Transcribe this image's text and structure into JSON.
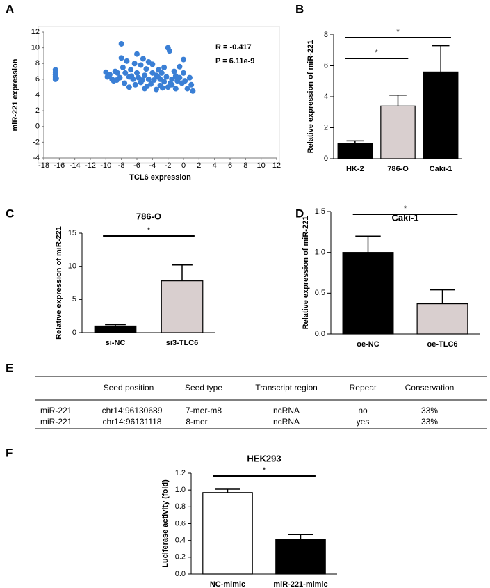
{
  "chart_data": [
    {
      "type": "scatter",
      "label": "A",
      "xlabel": "TCL6 expression",
      "ylabel": "miR-221 expression",
      "annotations": [
        "R = -0.417",
        "P = 6.11e-9"
      ],
      "color": "#3a7fd5",
      "xlim": [
        -18,
        12
      ],
      "xticks": [
        -18,
        -16,
        -14,
        -12,
        -10,
        -8,
        -6,
        -4,
        -2,
        0,
        2,
        4,
        6,
        8,
        10,
        12
      ],
      "ylim": [
        -4,
        12
      ],
      "yticks": [
        -4,
        -2,
        0,
        2,
        4,
        6,
        8,
        10,
        12
      ],
      "x": [
        -16.5,
        -16.5,
        -16.5,
        -16.5,
        -16.5,
        -16.4,
        -10,
        -9.5,
        -9.2,
        -9,
        -8.8,
        -8.5,
        -8.2,
        -8,
        -8,
        -7.8,
        -7.6,
        -7.5,
        -7.3,
        -7,
        -7,
        -6.8,
        -6.5,
        -6.3,
        -6.2,
        -6,
        -6,
        -5.8,
        -5.5,
        -5.5,
        -5.2,
        -5,
        -5,
        -4.8,
        -4.5,
        -4.5,
        -4.2,
        -4,
        -4,
        -3.8,
        -3.5,
        -3.5,
        -3.2,
        -3,
        -3,
        -2.8,
        -2.5,
        -2.5,
        -2.2,
        -2,
        -2,
        -1.8,
        -1.5,
        -1.5,
        -1.2,
        -1,
        -1,
        -0.8,
        -0.5,
        -0.5,
        -0.2,
        0,
        0,
        0.2,
        0.5,
        0.8,
        1,
        1.2,
        -9.8,
        -8.6,
        -6.7,
        -5.3,
        -4.7,
        -3.3,
        -2.7,
        -1.7
      ],
      "y": [
        6,
        6.3,
        6.6,
        6.9,
        7.2,
        6.1,
        6.9,
        6.6,
        6,
        5.8,
        7,
        6.8,
        6.2,
        10.5,
        8.7,
        7.5,
        5.5,
        6.8,
        8.3,
        6.3,
        5,
        7.2,
        6,
        8,
        5.3,
        9.2,
        6.8,
        6.2,
        7.8,
        5.6,
        8.6,
        6.5,
        4.8,
        7.3,
        6,
        8.2,
        5.4,
        6.8,
        7.9,
        5.9,
        6.5,
        4.7,
        7.2,
        6,
        5.2,
        6.8,
        5.7,
        7.5,
        6.3,
        5,
        10,
        9.6,
        6,
        5.3,
        7,
        6.4,
        4.8,
        5.8,
        7.6,
        6.2,
        5.5,
        8.5,
        6.8,
        5.8,
        4.8,
        6.2,
        5.3,
        4.5,
        6.3,
        5.9,
        6.4,
        5.9,
        5.1,
        6.3,
        4.9,
        5.5
      ]
    },
    {
      "type": "bar",
      "label": "B",
      "ylabel": "Relative expression of miR-221",
      "categories": [
        "HK-2",
        "786-O",
        "Caki-1"
      ],
      "values": [
        1.0,
        3.4,
        5.6
      ],
      "errors": [
        0.15,
        0.7,
        1.7
      ],
      "colors": [
        "#000000",
        "#d9cfcf",
        "#000000"
      ],
      "ylim": [
        0,
        8
      ],
      "yticks": [
        0,
        2,
        4,
        6,
        8
      ],
      "significance": [
        {
          "between": [
            0,
            1
          ],
          "label": "*"
        },
        {
          "between": [
            0,
            2
          ],
          "label": "*"
        }
      ]
    },
    {
      "type": "bar",
      "label": "C",
      "title": "786-O",
      "ylabel": "Relative expression of miR-221",
      "categories": [
        "si-NC",
        "si3-TLC6"
      ],
      "values": [
        1.0,
        7.8
      ],
      "errors": [
        0.2,
        2.4
      ],
      "colors": [
        "#000000",
        "#d9cfcf"
      ],
      "ylim": [
        0,
        15
      ],
      "yticks": [
        0,
        5,
        10,
        15
      ],
      "significance": [
        {
          "between": [
            0,
            1
          ],
          "label": "*"
        }
      ]
    },
    {
      "type": "bar",
      "label": "D",
      "title": "Caki-1",
      "ylabel": "Relative expression of miR-221",
      "categories": [
        "oe-NC",
        "oe-TLC6"
      ],
      "values": [
        1.0,
        0.37
      ],
      "errors": [
        0.2,
        0.17
      ],
      "colors": [
        "#000000",
        "#d9cfcf"
      ],
      "ylim": [
        0,
        1.5
      ],
      "yticks": [
        {
          "value": 0,
          "label": "0.0"
        },
        0.5,
        {
          "value": 1,
          "label": "1.0"
        },
        1.5
      ],
      "significance": [
        {
          "between": [
            0,
            1
          ],
          "label": "*"
        }
      ]
    },
    {
      "type": "bar",
      "label": "F",
      "title": "HEK293",
      "ylabel": "Luciferase activity (fold)",
      "categories": [
        "NC-mimic",
        "miR-221-mimic"
      ],
      "values": [
        0.97,
        0.41
      ],
      "errors": [
        0.04,
        0.06
      ],
      "colors": [
        "#ffffff",
        "#000000"
      ],
      "ylim": [
        0,
        1.2
      ],
      "yticks": [
        {
          "value": 0,
          "label": "0.0"
        },
        0.2,
        0.4,
        0.6,
        0.8,
        {
          "value": 1,
          "label": "1.0"
        },
        1.2
      ],
      "significance": [
        {
          "between": [
            0,
            1
          ],
          "label": "*"
        }
      ]
    }
  ],
  "table": {
    "label": "E",
    "columns": [
      "Seed position",
      "Seed type",
      "Transcript region",
      "Repeat",
      "Conservation"
    ],
    "rows": [
      {
        "name": "miR-221",
        "cells": [
          "chr14:96130689",
          "7-mer-m8",
          "ncRNA",
          "no",
          "33%"
        ]
      },
      {
        "name": "miR-221",
        "cells": [
          "chr14:96131118",
          "8-mer",
          "ncRNA",
          "yes",
          "33%"
        ]
      }
    ]
  }
}
